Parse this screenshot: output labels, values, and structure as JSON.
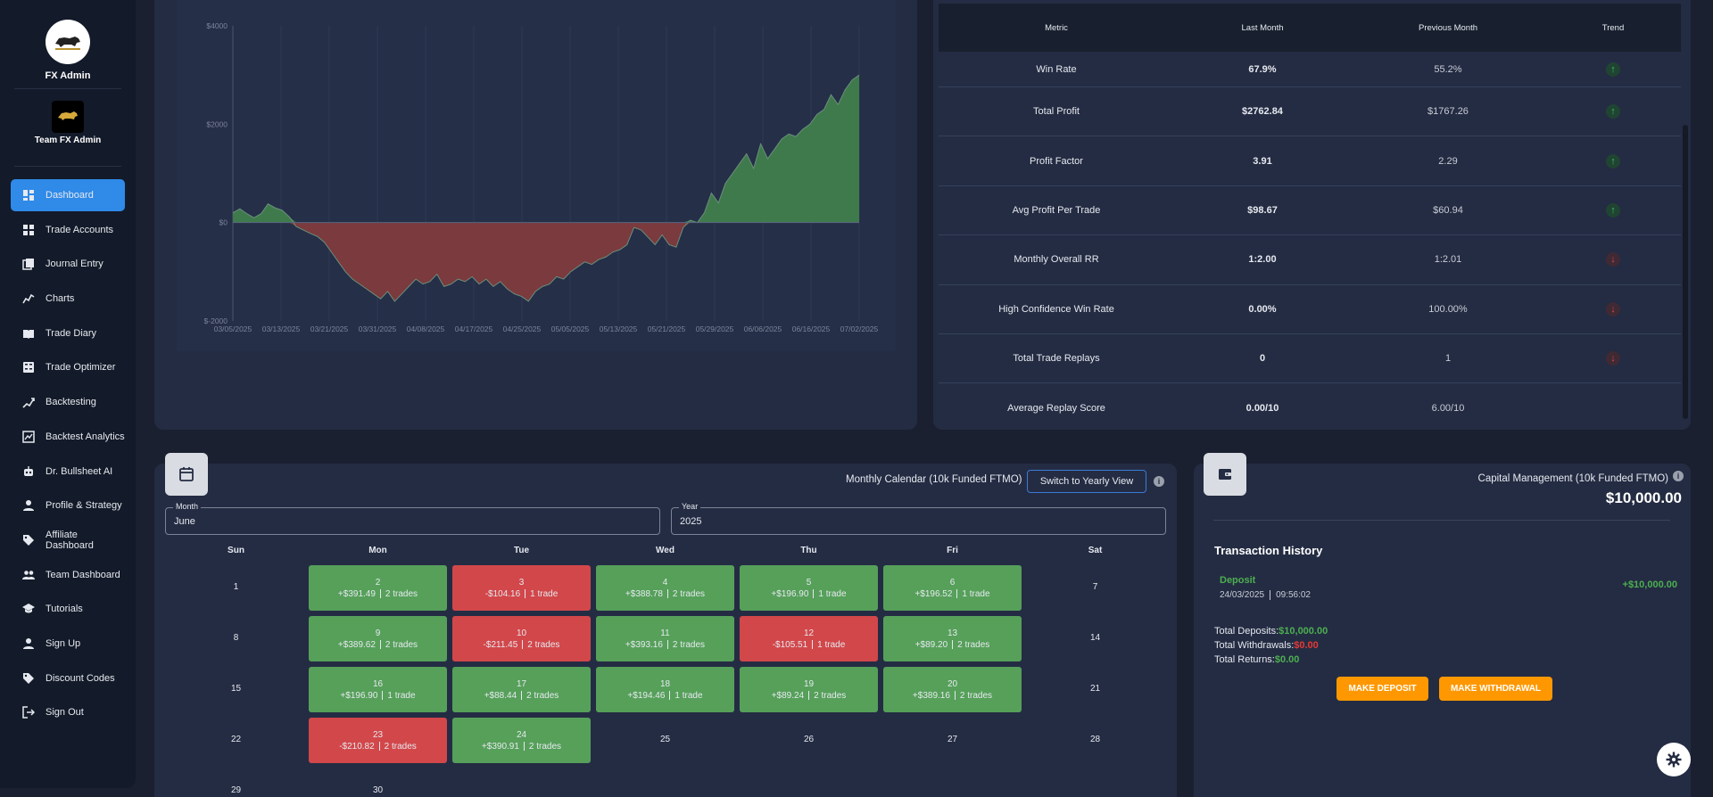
{
  "sidebar": {
    "app_name": "FX Admin",
    "team_name": "Team FX Admin",
    "items": [
      {
        "label": "Dashboard",
        "icon": "dashboard-icon"
      },
      {
        "label": "Trade Accounts",
        "icon": "grid-icon"
      },
      {
        "label": "Journal Entry",
        "icon": "journal-icon"
      },
      {
        "label": "Charts",
        "icon": "chart-line-icon"
      },
      {
        "label": "Trade Diary",
        "icon": "book-icon"
      },
      {
        "label": "Trade Optimizer",
        "icon": "calculator-icon"
      },
      {
        "label": "Backtesting",
        "icon": "trend-icon"
      },
      {
        "label": "Backtest Analytics",
        "icon": "analytics-icon"
      },
      {
        "label": "Dr. Bullsheet AI",
        "icon": "robot-icon"
      },
      {
        "label": "Profile & Strategy",
        "icon": "person-icon"
      },
      {
        "label": "Affiliate Dashboard",
        "icon": "tag-icon"
      },
      {
        "label": "Team Dashboard",
        "icon": "group-icon"
      },
      {
        "label": "Tutorials",
        "icon": "school-icon"
      },
      {
        "label": "Sign Up",
        "icon": "person-add-icon"
      },
      {
        "label": "Discount Codes",
        "icon": "tag-icon"
      },
      {
        "label": "Sign Out",
        "icon": "logout-icon"
      }
    ]
  },
  "chart_data": {
    "type": "area",
    "ytick_labels": [
      "$4000",
      "$2000",
      "$0",
      "$-2000"
    ],
    "yticks": [
      4000,
      2000,
      0,
      -2000
    ],
    "ylim": [
      -2000,
      4200
    ],
    "xtick_labels": [
      "03/05/2025",
      "03/13/2025",
      "03/21/2025",
      "03/31/2025",
      "04/08/2025",
      "04/17/2025",
      "04/25/2025",
      "05/05/2025",
      "05/13/2025",
      "05/21/2025",
      "05/29/2025",
      "06/06/2025",
      "06/16/2025",
      "07/02/2025"
    ],
    "positive_color": "#3f7a4d",
    "negative_color": "#7a3a3e",
    "series": [
      {
        "values": [
          200,
          280,
          180,
          100,
          180,
          380,
          300,
          250,
          120,
          -80,
          -150,
          -220,
          -280,
          -400,
          -600,
          -800,
          -1000,
          -1150,
          -1250,
          -1350,
          -1450,
          -1550,
          -1400,
          -1600,
          -1450,
          -1300,
          -1150,
          -1250,
          -1200,
          -1050,
          -1300,
          -1250,
          -1150,
          -1200,
          -1100,
          -1250,
          -1150,
          -1300,
          -1200,
          -1350,
          -1450,
          -1500,
          -1600,
          -1400,
          -1300,
          -1250,
          -1100,
          -1150,
          -1000,
          -900,
          -800,
          -850,
          -750,
          -700,
          -600,
          -550,
          -450,
          -100,
          -150,
          -300,
          -450,
          -250,
          -450,
          -500,
          -100,
          50,
          0,
          200,
          600,
          400,
          800,
          1000,
          1200,
          1400,
          1100,
          1600,
          1300,
          1500,
          1700,
          1800,
          1750,
          1900,
          2000,
          2200,
          2300,
          2600,
          2400,
          2700,
          2900,
          3000
        ]
      }
    ]
  },
  "metrics": {
    "headers": [
      "Metric",
      "Last Month",
      "Previous Month",
      "Trend"
    ],
    "rows": [
      {
        "metric": "Win Rate",
        "last": "67.9%",
        "prev": "55.2%",
        "trend": "up"
      },
      {
        "metric": "Total Profit",
        "last": "$2762.84",
        "prev": "$1767.26",
        "trend": "up"
      },
      {
        "metric": "Profit Factor",
        "last": "3.91",
        "prev": "2.29",
        "trend": "up"
      },
      {
        "metric": "Avg Profit Per Trade",
        "last": "$98.67",
        "prev": "$60.94",
        "trend": "up"
      },
      {
        "metric": "Monthly Overall RR",
        "last": "1:2.00",
        "prev": "1:2.01",
        "trend": "down"
      },
      {
        "metric": "High Confidence Win Rate",
        "last": "0.00%",
        "prev": "100.00%",
        "trend": "down"
      },
      {
        "metric": "Total Trade Replays",
        "last": "0",
        "prev": "1",
        "trend": "down"
      },
      {
        "metric": "Average Replay Score",
        "last": "0.00/10",
        "prev": "6.00/10",
        "trend": ""
      }
    ]
  },
  "calendar": {
    "title": "Monthly Calendar (10k Funded FTMO)",
    "switch_label": "Switch to Yearly View",
    "month_label": "Month",
    "month_value": "June",
    "year_label": "Year",
    "year_value": "2025",
    "weekdays": [
      "Sun",
      "Mon",
      "Tue",
      "Wed",
      "Thu",
      "Fri",
      "Sat"
    ],
    "weeks": [
      [
        {
          "d": "1"
        },
        {
          "d": "2",
          "pnl": "+$391.49",
          "trades": "2 trades",
          "c": "g"
        },
        {
          "d": "3",
          "pnl": "-$104.16",
          "trades": "1 trade",
          "c": "r"
        },
        {
          "d": "4",
          "pnl": "+$388.78",
          "trades": "2 trades",
          "c": "g"
        },
        {
          "d": "5",
          "pnl": "+$196.90",
          "trades": "1 trade",
          "c": "g"
        },
        {
          "d": "6",
          "pnl": "+$196.52",
          "trades": "1 trade",
          "c": "g"
        },
        {
          "d": "7"
        }
      ],
      [
        {
          "d": "8"
        },
        {
          "d": "9",
          "pnl": "+$389.62",
          "trades": "2 trades",
          "c": "g"
        },
        {
          "d": "10",
          "pnl": "-$211.45",
          "trades": "2 trades",
          "c": "r"
        },
        {
          "d": "11",
          "pnl": "+$393.16",
          "trades": "2 trades",
          "c": "g"
        },
        {
          "d": "12",
          "pnl": "-$105.51",
          "trades": "1 trade",
          "c": "r"
        },
        {
          "d": "13",
          "pnl": "+$89.20",
          "trades": "2 trades",
          "c": "g"
        },
        {
          "d": "14"
        }
      ],
      [
        {
          "d": "15"
        },
        {
          "d": "16",
          "pnl": "+$196.90",
          "trades": "1 trade",
          "c": "g"
        },
        {
          "d": "17",
          "pnl": "+$88.44",
          "trades": "2 trades",
          "c": "g"
        },
        {
          "d": "18",
          "pnl": "+$194.46",
          "trades": "1 trade",
          "c": "g"
        },
        {
          "d": "19",
          "pnl": "+$89.24",
          "trades": "2 trades",
          "c": "g"
        },
        {
          "d": "20",
          "pnl": "+$389.16",
          "trades": "2 trades",
          "c": "g"
        },
        {
          "d": "21"
        }
      ],
      [
        {
          "d": "22"
        },
        {
          "d": "23",
          "pnl": "-$210.82",
          "trades": "2 trades",
          "c": "r"
        },
        {
          "d": "24",
          "pnl": "+$390.91",
          "trades": "2 trades",
          "c": "g"
        },
        {
          "d": "25"
        },
        {
          "d": "26"
        },
        {
          "d": "27"
        },
        {
          "d": "28"
        }
      ],
      [
        {
          "d": "29"
        },
        {
          "d": "30"
        }
      ]
    ]
  },
  "capital": {
    "title": "Capital Management (10k Funded FTMO)",
    "balance": "$10,000.00",
    "history_title": "Transaction History",
    "tx_type": "Deposit",
    "tx_date": "24/03/2025",
    "tx_time": "09:56:02",
    "tx_amount": "+$10,000.00",
    "deposits_label": "Total Deposits:",
    "deposits_value": "$10,000.00",
    "withdrawals_label": "Total Withdrawals:",
    "withdrawals_value": "$0.00",
    "returns_label": "Total Returns:",
    "returns_value": "$0.00",
    "deposit_btn": "MAKE DEPOSIT",
    "withdraw_btn": "MAKE WITHDRAWAL"
  }
}
